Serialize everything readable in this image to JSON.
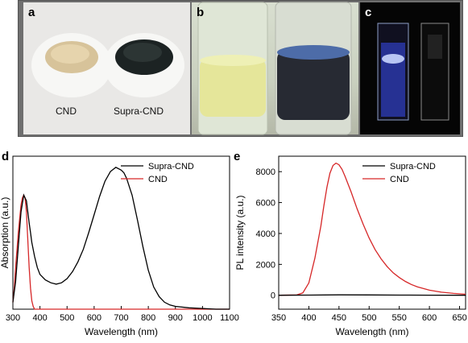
{
  "panels": {
    "a": {
      "letter": "a",
      "label_left": "CND",
      "label_right": "Supra-CND"
    },
    "b": {
      "letter": "b"
    },
    "c": {
      "letter": "c"
    },
    "d": {
      "letter": "d"
    },
    "e": {
      "letter": "e"
    }
  },
  "colors": {
    "black_series": "#000000",
    "red_series": "#d62728"
  },
  "chart_data": [
    {
      "type": "line",
      "panel": "d",
      "xlabel": "Wavelength (nm)",
      "ylabel": "Absorption (a.u.)",
      "xlim": [
        300,
        1100
      ],
      "xticks": [
        "300",
        "400",
        "500",
        "600",
        "700",
        "800",
        "900",
        "1000",
        "1100"
      ],
      "legend": "top-right",
      "series": [
        {
          "name": "Supra-CND",
          "color": "#000000",
          "x": [
            300,
            310,
            320,
            330,
            340,
            350,
            355,
            360,
            365,
            370,
            380,
            390,
            400,
            420,
            440,
            460,
            480,
            500,
            520,
            540,
            560,
            580,
            600,
            620,
            640,
            660,
            680,
            700,
            710,
            720,
            740,
            760,
            780,
            800,
            820,
            840,
            860,
            880,
            900,
            950,
            1000,
            1050,
            1100
          ],
          "y": [
            0.05,
            0.2,
            0.45,
            0.7,
            0.82,
            0.78,
            0.7,
            0.62,
            0.55,
            0.48,
            0.38,
            0.3,
            0.25,
            0.21,
            0.19,
            0.18,
            0.19,
            0.22,
            0.27,
            0.34,
            0.43,
            0.55,
            0.68,
            0.81,
            0.92,
            0.99,
            1.02,
            1.0,
            0.98,
            0.94,
            0.82,
            0.64,
            0.45,
            0.28,
            0.16,
            0.09,
            0.05,
            0.03,
            0.02,
            0.01,
            0.005,
            0.0,
            0.0
          ]
        },
        {
          "name": "CND",
          "color": "#d62728",
          "x": [
            300,
            305,
            310,
            320,
            330,
            335,
            340,
            345,
            350,
            355,
            360,
            365,
            370,
            375,
            380,
            390,
            400,
            450,
            500,
            600,
            700,
            800,
            900,
            1000,
            1100
          ],
          "y": [
            0.05,
            0.15,
            0.3,
            0.55,
            0.75,
            0.8,
            0.82,
            0.8,
            0.7,
            0.5,
            0.3,
            0.15,
            0.06,
            0.02,
            0.0,
            0.0,
            0.0,
            0.0,
            0.0,
            0.0,
            0.0,
            0.0,
            0.0,
            0.0,
            0.0
          ]
        }
      ]
    },
    {
      "type": "line",
      "panel": "e",
      "xlabel": "Wavelength (nm)",
      "ylabel": "PL intensity (a.u.)",
      "xlim": [
        350,
        660
      ],
      "ylim": [
        -900,
        9000
      ],
      "xticks": [
        "350",
        "400",
        "450",
        "500",
        "550",
        "600",
        "650"
      ],
      "yticks": [
        "0",
        "2000",
        "4000",
        "6000",
        "8000"
      ],
      "legend": "top-right",
      "series": [
        {
          "name": "Supra-CND",
          "color": "#000000",
          "x": [
            350,
            400,
            450,
            500,
            550,
            600,
            660
          ],
          "y": [
            0,
            10,
            30,
            20,
            10,
            5,
            0
          ]
        },
        {
          "name": "CND",
          "color": "#d62728",
          "x": [
            350,
            380,
            390,
            400,
            410,
            420,
            425,
            430,
            435,
            440,
            445,
            450,
            455,
            460,
            470,
            480,
            490,
            500,
            510,
            520,
            530,
            540,
            550,
            560,
            570,
            580,
            600,
            620,
            640,
            660
          ],
          "y": [
            0,
            20,
            150,
            800,
            2400,
            4500,
            5800,
            7000,
            7900,
            8400,
            8550,
            8450,
            8150,
            7700,
            6700,
            5600,
            4600,
            3700,
            2950,
            2350,
            1850,
            1450,
            1150,
            900,
            700,
            550,
            330,
            200,
            120,
            70
          ]
        }
      ]
    }
  ]
}
